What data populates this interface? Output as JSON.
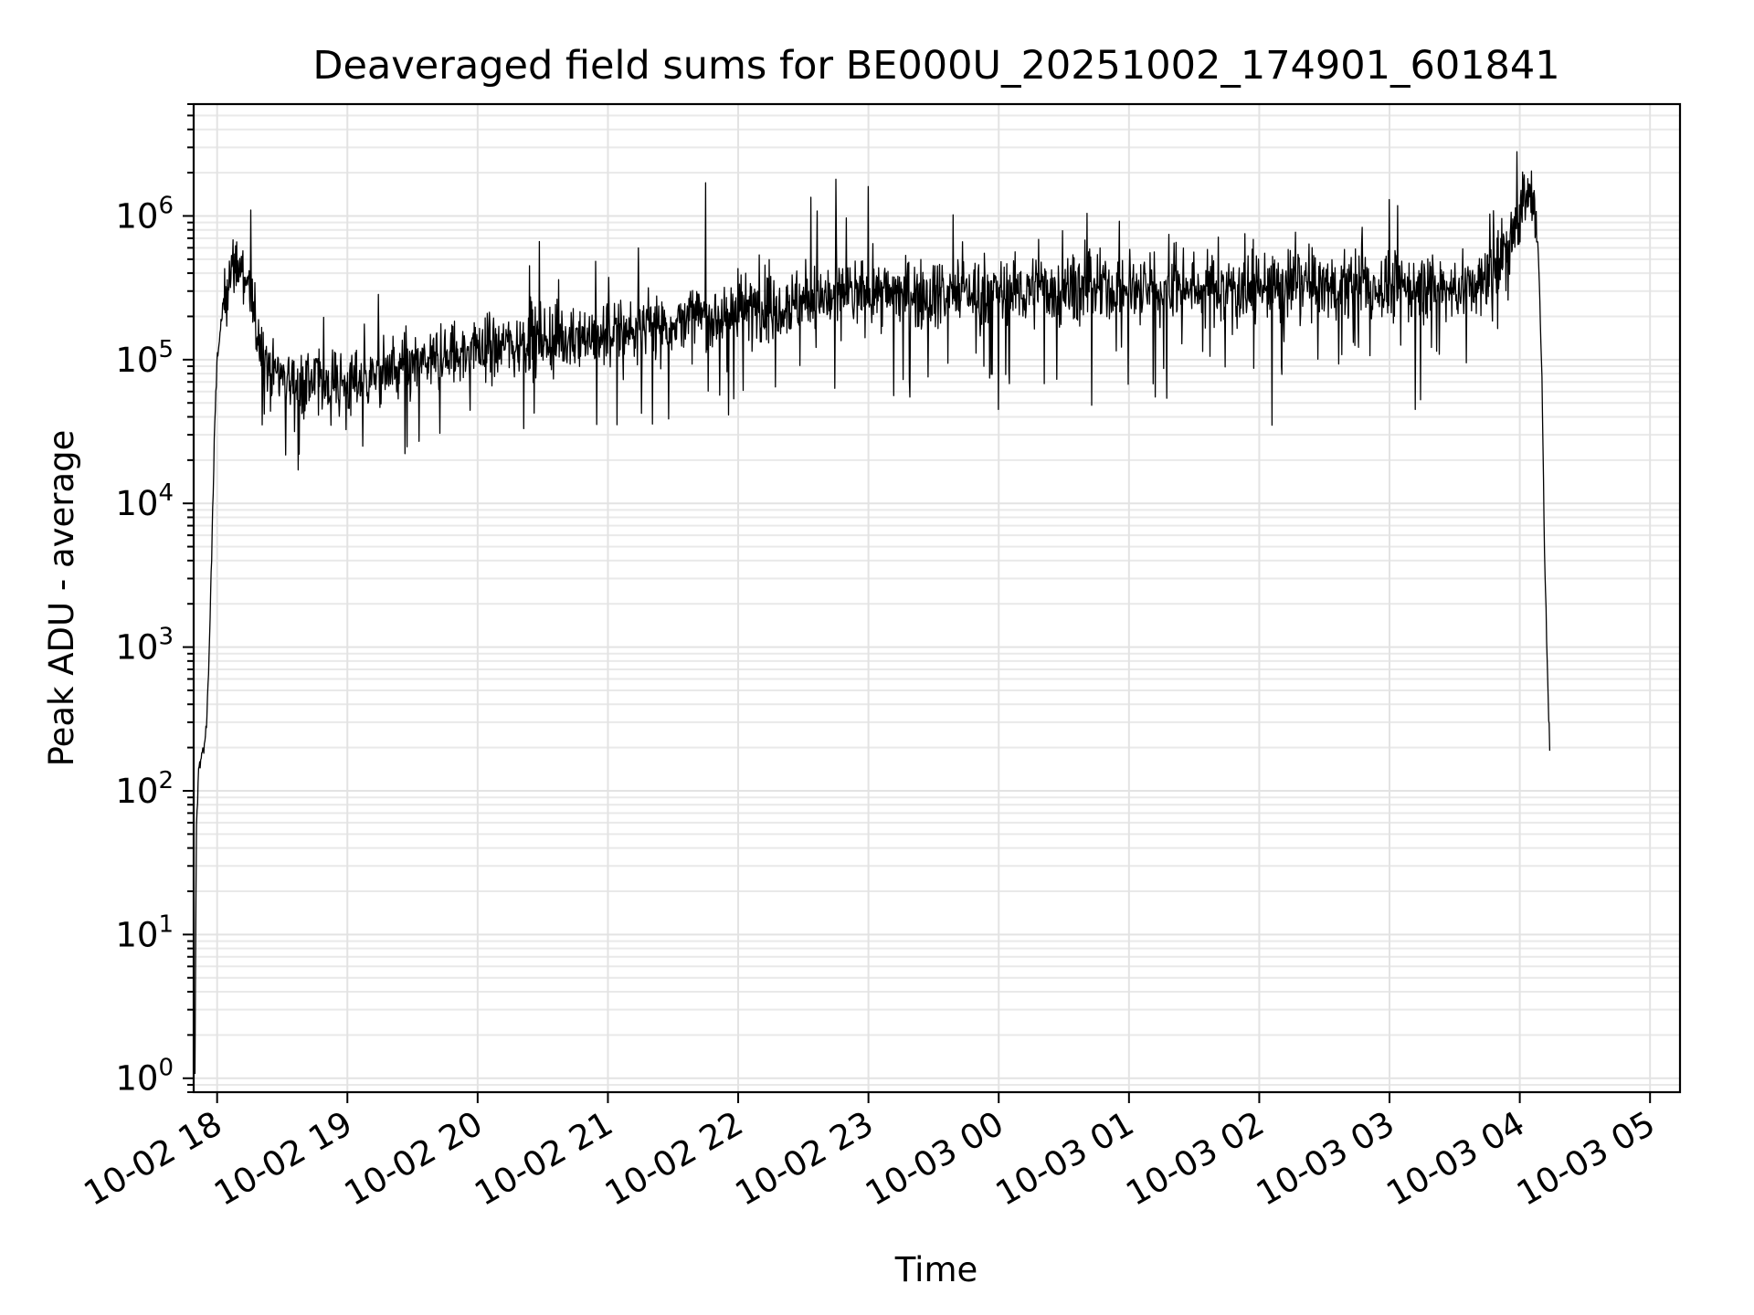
{
  "chart_data": {
    "type": "line",
    "title": "Deaveraged field sums for BE000U_20251002_174901_601841",
    "xlabel": "Time",
    "ylabel": "Peak ADU - average",
    "yscale": "log",
    "ylim": [
      0.8,
      6000000
    ],
    "xlim_hours_from_10-02_18": [
      -0.18,
      11.23
    ],
    "grid": true,
    "x_ticks": [
      {
        "label": "10-02 18",
        "hour": 0
      },
      {
        "label": "10-02 19",
        "hour": 1
      },
      {
        "label": "10-02 20",
        "hour": 2
      },
      {
        "label": "10-02 21",
        "hour": 3
      },
      {
        "label": "10-02 22",
        "hour": 4
      },
      {
        "label": "10-02 23",
        "hour": 5
      },
      {
        "label": "10-03 00",
        "hour": 6
      },
      {
        "label": "10-03 01",
        "hour": 7
      },
      {
        "label": "10-03 02",
        "hour": 8
      },
      {
        "label": "10-03 03",
        "hour": 9
      },
      {
        "label": "10-03 04",
        "hour": 10
      },
      {
        "label": "10-03 05",
        "hour": 11
      }
    ],
    "y_ticks": [
      {
        "base": "10",
        "exp": "0",
        "value": 1
      },
      {
        "base": "10",
        "exp": "1",
        "value": 10
      },
      {
        "base": "10",
        "exp": "2",
        "value": 100
      },
      {
        "base": "10",
        "exp": "3",
        "value": 1000
      },
      {
        "base": "10",
        "exp": "4",
        "value": 10000
      },
      {
        "base": "10",
        "exp": "5",
        "value": 100000
      },
      {
        "base": "10",
        "exp": "6",
        "value": 1000000
      }
    ],
    "series": [
      {
        "name": "Peak ADU - average",
        "color": "#000000",
        "baseline": [
          [
            -0.17,
            1
          ],
          [
            -0.16,
            50
          ],
          [
            -0.14,
            150
          ],
          [
            -0.1,
            200
          ],
          [
            -0.08,
            300
          ],
          [
            -0.06,
            1000
          ],
          [
            -0.04,
            5000
          ],
          [
            -0.02,
            30000
          ],
          [
            0.0,
            100000
          ],
          [
            0.05,
            250000
          ],
          [
            0.1,
            420000
          ],
          [
            0.15,
            450000
          ],
          [
            0.2,
            420000
          ],
          [
            0.25,
            300000
          ],
          [
            0.3,
            160000
          ],
          [
            0.4,
            90000
          ],
          [
            0.6,
            70000
          ],
          [
            1.0,
            70000
          ],
          [
            1.5,
            90000
          ],
          [
            2.0,
            120000
          ],
          [
            2.5,
            140000
          ],
          [
            3.0,
            150000
          ],
          [
            3.5,
            180000
          ],
          [
            4.0,
            220000
          ],
          [
            4.5,
            260000
          ],
          [
            5.0,
            290000
          ],
          [
            6.0,
            300000
          ],
          [
            7.0,
            310000
          ],
          [
            8.0,
            320000
          ],
          [
            9.0,
            320000
          ],
          [
            9.5,
            310000
          ],
          [
            9.7,
            320000
          ],
          [
            9.85,
            450000
          ],
          [
            9.95,
            800000
          ],
          [
            10.0,
            1100000
          ],
          [
            10.05,
            1400000
          ],
          [
            10.1,
            1300000
          ],
          [
            10.14,
            600000
          ],
          [
            10.17,
            80000
          ],
          [
            10.19,
            5000
          ],
          [
            10.21,
            800
          ],
          [
            10.23,
            200
          ]
        ],
        "noise_sigma_log10": 0.17,
        "spikes": [
          [
            0.26,
            1100000
          ],
          [
            0.63,
            22000
          ],
          [
            1.12,
            25000
          ],
          [
            1.55,
            27000
          ],
          [
            2.4,
            450000
          ],
          [
            3.75,
            1700000
          ],
          [
            4.56,
            1350000
          ],
          [
            4.75,
            1800000
          ],
          [
            5.0,
            1600000
          ],
          [
            6.0,
            45000
          ],
          [
            7.2,
            55000
          ],
          [
            8.1,
            35000
          ],
          [
            9.0,
            1300000
          ],
          [
            9.2,
            45000
          ],
          [
            9.98,
            2800000
          ]
        ]
      }
    ]
  }
}
